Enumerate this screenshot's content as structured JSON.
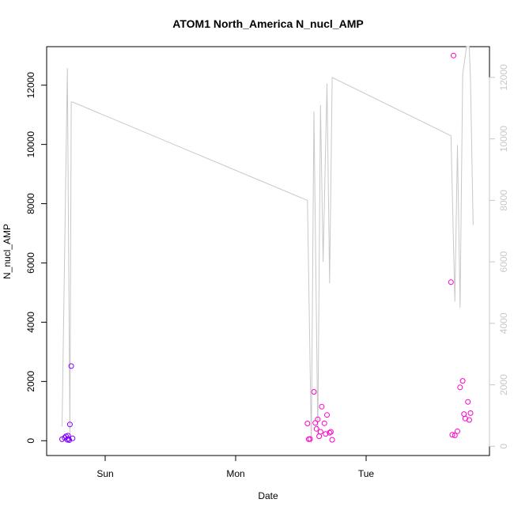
{
  "chart_data": {
    "type": "scatter",
    "title": "ATOM1 North_America N_nucl_AMP",
    "xlabel": "Date",
    "ylabel": "N_nucl_AMP",
    "x_ticks": [
      "Sun",
      "Mon",
      "Tue"
    ],
    "ylim_left": [
      -500,
      13300
    ],
    "yticks_left": [
      0,
      2000,
      4000,
      6000,
      8000,
      10000,
      12000
    ],
    "ylim_right": [
      -300,
      13000
    ],
    "yticks_right": [
      0,
      2000,
      4000,
      6000,
      8000,
      10000,
      12000
    ],
    "grid": false,
    "colors": {
      "points_early": "#8000ff",
      "points_late": "#ff00cc",
      "line": "#c8c8c8",
      "axis": "#000000",
      "right_axis": "#c8c8c8"
    },
    "series": [
      {
        "kind": "points",
        "axis": "left",
        "x": [
          -0.33,
          -0.31,
          -0.3,
          -0.29,
          -0.285,
          -0.28,
          -0.275,
          -0.27,
          -0.26,
          -0.25,
          1.55,
          1.56,
          1.57,
          1.6,
          1.61,
          1.62,
          1.63,
          1.64,
          1.65,
          1.66,
          1.68,
          1.69,
          1.7,
          1.72,
          1.73,
          1.74,
          2.65,
          2.66,
          2.67,
          2.68,
          2.7,
          2.72,
          2.74,
          2.75,
          2.76,
          2.78,
          2.79,
          2.8
        ],
        "y": [
          50,
          100,
          150,
          30,
          170,
          60,
          20,
          550,
          2520,
          80,
          580,
          50,
          60,
          1650,
          600,
          400,
          720,
          150,
          300,
          1150,
          590,
          230,
          870,
          270,
          300,
          30,
          5350,
          200,
          13000,
          180,
          320,
          1800,
          2020,
          900,
          750,
          1310,
          700,
          930
        ],
        "colors": [
          "#8000ff",
          "#8000ff",
          "#8000ff",
          "#8000ff",
          "#8000ff",
          "#8000ff",
          "#8000ff",
          "#8000ff",
          "#8000ff",
          "#8000ff",
          "#ff00cc",
          "#ff00cc",
          "#ff00cc",
          "#ff00cc",
          "#ff00cc",
          "#ff00cc",
          "#ff00cc",
          "#ff00cc",
          "#ff00cc",
          "#ff00cc",
          "#ff00cc",
          "#ff00cc",
          "#ff00cc",
          "#ff00cc",
          "#ff00cc",
          "#ff00cc",
          "#ff00cc",
          "#ff00cc",
          "#ff00cc",
          "#ff00cc",
          "#ff00cc",
          "#ff00cc",
          "#ff00cc",
          "#ff00cc",
          "#ff00cc",
          "#ff00cc",
          "#ff00cc",
          "#ff00cc"
        ]
      },
      {
        "kind": "line",
        "axis": "right",
        "x": [
          -0.33,
          -0.29,
          -0.27,
          -0.26,
          -0.25,
          1.55,
          1.58,
          1.6,
          1.63,
          1.65,
          1.67,
          1.7,
          1.72,
          1.74,
          2.65,
          2.68,
          2.7,
          2.72,
          2.74,
          2.77,
          2.79,
          2.8,
          2.82
        ],
        "y": [
          650,
          12300,
          350,
          11200,
          11200,
          8000,
          100,
          10900,
          350,
          11100,
          6000,
          11800,
          5300,
          12000,
          10100,
          4700,
          9800,
          4500,
          12100,
          13000,
          13000,
          11900,
          7200
        ]
      }
    ]
  }
}
